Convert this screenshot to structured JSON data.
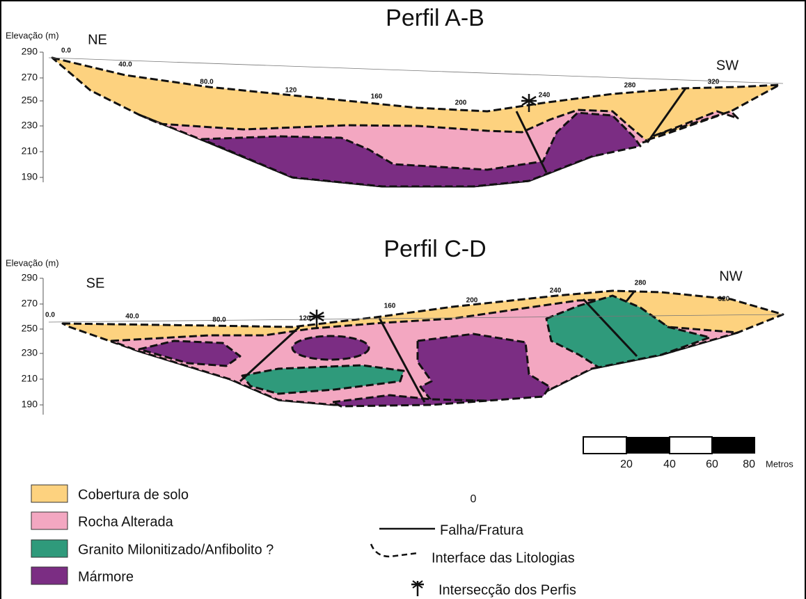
{
  "profiles": [
    {
      "title": "Perfil A-B",
      "y_axis_label": "Elevação (m)",
      "yticks": [
        "290",
        "270",
        "250",
        "230",
        "210",
        "190"
      ],
      "xticks": [
        "0.0",
        "40.0",
        "80.0",
        "120",
        "160",
        "200",
        "240",
        "280",
        "320"
      ],
      "left_direction": "NE",
      "right_direction": "SW"
    },
    {
      "title": "Perfil C-D",
      "y_axis_label": "Elevação (m)",
      "yticks": [
        "290",
        "270",
        "250",
        "230",
        "210",
        "190"
      ],
      "xticks": [
        "0.0",
        "40.0",
        "80.0",
        "120",
        "160",
        "200",
        "240",
        "280",
        "320"
      ],
      "left_direction": "SE",
      "right_direction": "NW"
    }
  ],
  "scale_bar": {
    "origin_label": "0",
    "labels": [
      "20",
      "40",
      "60",
      "80"
    ],
    "unit": "Metros"
  },
  "legend": {
    "lithologies": [
      "Cobertura de solo",
      "Rocha Alterada",
      "Granito Milonitizado/Anfibolito ?",
      "Mármore"
    ],
    "symbols": [
      "Falha/Fratura",
      "Interface das Litologias",
      "Intersecção dos Perfis"
    ]
  }
}
